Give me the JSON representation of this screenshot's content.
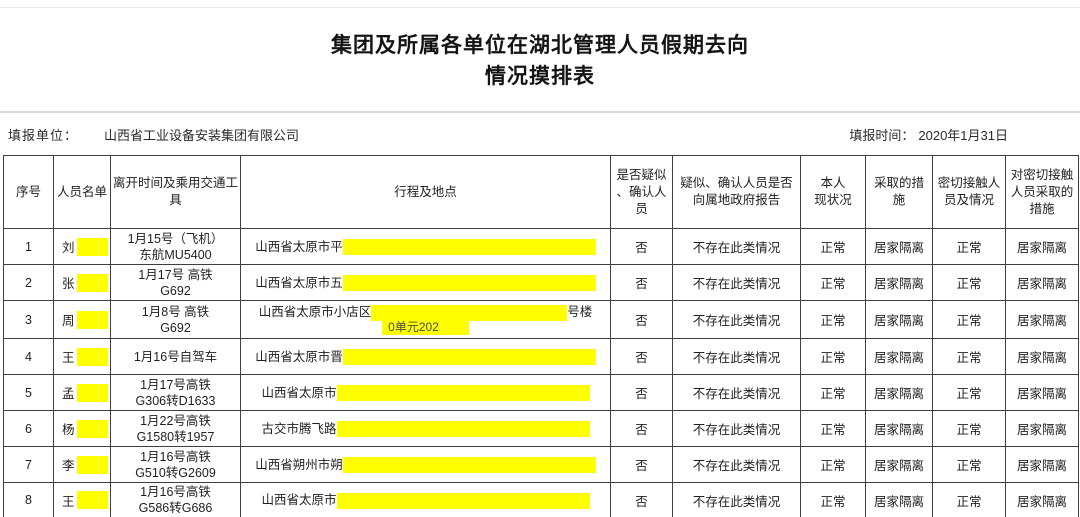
{
  "page": {
    "title_line1": "集团及所属各单位在湖北管理人员假期去向",
    "title_line2": "情况摸排表"
  },
  "meta": {
    "unit_label": "填报单位：",
    "unit_value": "山西省工业设备安装集团有限公司",
    "time_label": "填报时间：",
    "time_value": "2020年1月31日"
  },
  "colors": {
    "redaction_highlight": "#ffff00",
    "border": "#3e3e3e"
  },
  "table": {
    "headers": {
      "serial": "序号",
      "name": "人员名单",
      "depart": "离开时间及乘用交通工具",
      "trip": "行程及地点",
      "suspect": "是否疑似\n、确认人\n员",
      "report": "疑似、确认人员是否\n向属地政府报告",
      "status": "本人\n现状况",
      "measure": "采取的措\n施",
      "contact": "密切接触人\n员及情况",
      "contact_measure": "对密切接触\n人员采取的\n措施"
    },
    "rows": [
      {
        "no": "1",
        "name": "刘",
        "depart1": "1月15号（飞机）",
        "depart2": "东航MU5400",
        "trip": "山西省太原市平",
        "trip_tail": "",
        "trip2": "",
        "suspect": "否",
        "report": "不存在此类情况",
        "status": "正常",
        "measure": "居家隔离",
        "contact": "正常",
        "contact_measure": "居家隔离"
      },
      {
        "no": "2",
        "name": "张",
        "depart1": "1月17号 高铁",
        "depart2": "G692",
        "trip": "山西省太原市五",
        "trip_tail": "",
        "trip2": "",
        "suspect": "否",
        "report": "不存在此类情况",
        "status": "正常",
        "measure": "居家隔离",
        "contact": "正常",
        "contact_measure": "居家隔离"
      },
      {
        "no": "3",
        "name": "周",
        "depart1": "1月8号 高铁",
        "depart2": "G692",
        "trip": "山西省太原市小店区",
        "trip_tail": "号楼",
        "trip2": "0单元202",
        "suspect": "否",
        "report": "不存在此类情况",
        "status": "正常",
        "measure": "居家隔离",
        "contact": "正常",
        "contact_measure": "居家隔离"
      },
      {
        "no": "4",
        "name": "王",
        "depart1": "1月16号自驾车",
        "depart2": "",
        "trip": "山西省太原市晋",
        "trip_tail": "",
        "trip2": "",
        "suspect": "否",
        "report": "不存在此类情况",
        "status": "正常",
        "measure": "居家隔离",
        "contact": "正常",
        "contact_measure": "居家隔离"
      },
      {
        "no": "5",
        "name": "孟",
        "depart1": "1月17号高铁",
        "depart2": "G306转D1633",
        "trip": "山西省太原市",
        "trip_tail": "",
        "trip2": "",
        "suspect": "否",
        "report": "不存在此类情况",
        "status": "正常",
        "measure": "居家隔离",
        "contact": "正常",
        "contact_measure": "居家隔离"
      },
      {
        "no": "6",
        "name": "杨",
        "depart1": "1月22号高铁",
        "depart2": "G1580转1957",
        "trip": "古交市腾飞路",
        "trip_tail": "",
        "trip2": "",
        "suspect": "否",
        "report": "不存在此类情况",
        "status": "正常",
        "measure": "居家隔离",
        "contact": "正常",
        "contact_measure": "居家隔离"
      },
      {
        "no": "7",
        "name": "李",
        "depart1": "1月16号高铁",
        "depart2": "G510转G2609",
        "trip": "山西省朔州市朔",
        "trip_tail": "",
        "trip2": "",
        "suspect": "否",
        "report": "不存在此类情况",
        "status": "正常",
        "measure": "居家隔离",
        "contact": "正常",
        "contact_measure": "居家隔离"
      },
      {
        "no": "8",
        "name": "王",
        "depart1": "1月16号高铁",
        "depart2": "G586转G686",
        "trip": "山西省太原市",
        "trip_tail": "",
        "trip2": "",
        "suspect": "否",
        "report": "不存在此类情况",
        "status": "正常",
        "measure": "居家隔离",
        "contact": "正常",
        "contact_measure": "居家隔离"
      }
    ]
  }
}
